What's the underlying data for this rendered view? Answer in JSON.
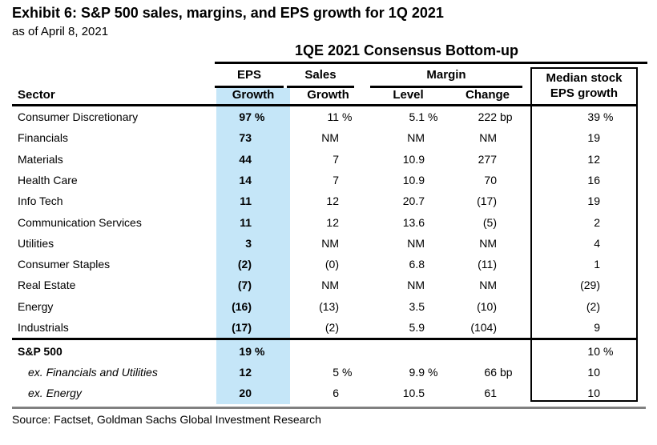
{
  "exhibit": {
    "title": "Exhibit 6: S&P 500 sales, margins, and EPS growth for 1Q 2021",
    "date_note": "as of April 8, 2021",
    "source": "Source: Factset, Goldman Sachs Global Investment Research"
  },
  "table": {
    "spanner": "1QE 2021 Consensus Bottom-up",
    "groups": {
      "eps": "EPS",
      "sales": "Sales",
      "margin": "Margin"
    },
    "headers": {
      "sector": "Sector",
      "eps_growth": "Growth",
      "sales_growth": "Growth",
      "margin_level": "Level",
      "margin_change": "Change",
      "median_line1": "Median stock",
      "median_line2": "EPS growth"
    },
    "rows": [
      {
        "sector": "Consumer Discretionary",
        "eps": "97",
        "eps_u": "%",
        "sales": "11",
        "sales_u": "%",
        "level": "5.1",
        "level_u": "%",
        "change": "222",
        "change_u": "bp",
        "median": "39",
        "median_u": "%"
      },
      {
        "sector": "Financials",
        "eps": "73",
        "sales": "NM",
        "level": "NM",
        "change": "NM",
        "median": "19"
      },
      {
        "sector": "Materials",
        "eps": "44",
        "sales": "7",
        "level": "10.9",
        "change": "277",
        "median": "12"
      },
      {
        "sector": "Health Care",
        "eps": "14",
        "sales": "7",
        "level": "10.9",
        "change": "70",
        "median": "16"
      },
      {
        "sector": "Info Tech",
        "eps": "11",
        "sales": "12",
        "level": "20.7",
        "change": "(17)",
        "median": "19"
      },
      {
        "sector": "Communication Services",
        "eps": "11",
        "sales": "12",
        "level": "13.6",
        "change": "(5)",
        "median": "2"
      },
      {
        "sector": "Utilities",
        "eps": "3",
        "sales": "NM",
        "level": "NM",
        "change": "NM",
        "median": "4"
      },
      {
        "sector": "Consumer Staples",
        "eps": "(2)",
        "sales": "(0)",
        "level": "6.8",
        "change": "(11)",
        "median": "1"
      },
      {
        "sector": "Real Estate",
        "eps": "(7)",
        "sales": "NM",
        "level": "NM",
        "change": "NM",
        "median": "(29)"
      },
      {
        "sector": "Energy",
        "eps": "(16)",
        "sales": "(13)",
        "level": "3.5",
        "change": "(10)",
        "median": "(2)"
      },
      {
        "sector": "Industrials",
        "eps": "(17)",
        "sales": "(2)",
        "level": "5.9",
        "change": "(104)",
        "median": "9"
      }
    ],
    "summary_rows": [
      {
        "sector": "S&P 500",
        "eps": "19",
        "eps_u": "%",
        "median": "10",
        "median_u": "%"
      },
      {
        "sector": "ex. Financials and Utilities",
        "eps": "12",
        "sales": "5",
        "sales_u": "%",
        "level": "9.9",
        "level_u": "%",
        "change": "66",
        "change_u": "bp",
        "median": "10"
      },
      {
        "sector": "ex. Energy",
        "eps": "20",
        "sales": "6",
        "level": "10.5",
        "change": "61",
        "median": "10"
      }
    ]
  },
  "colors": {
    "highlight_blue": "#C5E6F8",
    "rule_gray": "#808080"
  },
  "chart_data": {
    "type": "table",
    "title": "1QE 2021 Consensus Bottom-up",
    "columns": [
      "Sector",
      "EPS Growth",
      "Sales Growth",
      "Margin Level",
      "Margin Change",
      "Median stock EPS growth"
    ],
    "rows": [
      [
        "Consumer Discretionary",
        "97 %",
        "11 %",
        "5.1 %",
        "222 bp",
        "39 %"
      ],
      [
        "Financials",
        "73",
        "NM",
        "NM",
        "NM",
        "19"
      ],
      [
        "Materials",
        "44",
        "7",
        "10.9",
        "277",
        "12"
      ],
      [
        "Health Care",
        "14",
        "7",
        "10.9",
        "70",
        "16"
      ],
      [
        "Info Tech",
        "11",
        "12",
        "20.7",
        "(17)",
        "19"
      ],
      [
        "Communication Services",
        "11",
        "12",
        "13.6",
        "(5)",
        "2"
      ],
      [
        "Utilities",
        "3",
        "NM",
        "NM",
        "NM",
        "4"
      ],
      [
        "Consumer Staples",
        "(2)",
        "(0)",
        "6.8",
        "(11)",
        "1"
      ],
      [
        "Real Estate",
        "(7)",
        "NM",
        "NM",
        "NM",
        "(29)"
      ],
      [
        "Energy",
        "(16)",
        "(13)",
        "3.5",
        "(10)",
        "(2)"
      ],
      [
        "Industrials",
        "(17)",
        "(2)",
        "5.9",
        "(104)",
        "9"
      ],
      [
        "S&P 500",
        "19 %",
        "",
        "",
        "",
        "10 %"
      ],
      [
        "ex. Financials and Utilities",
        "12",
        "5 %",
        "9.9 %",
        "66 bp",
        "10"
      ],
      [
        "ex. Energy",
        "20",
        "6",
        "10.5",
        "61",
        "10"
      ]
    ],
    "notes": "EPS Growth column highlighted light blue; Median stock EPS growth column boxed"
  }
}
